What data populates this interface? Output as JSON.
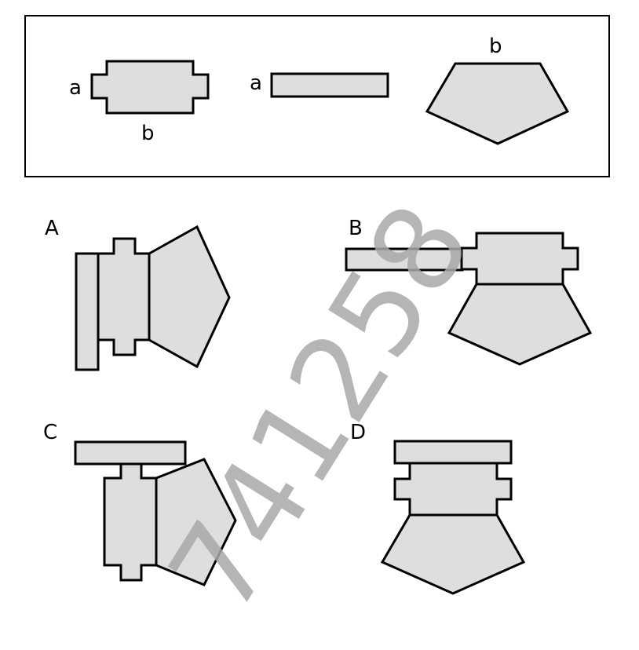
{
  "reference": {
    "labels": {
      "piece1_a": "a",
      "piece1_b": "b",
      "piece2_a": "a",
      "piece3_b": "b"
    }
  },
  "options": [
    {
      "letter": "A"
    },
    {
      "letter": "B"
    },
    {
      "letter": "C"
    },
    {
      "letter": "D"
    }
  ],
  "watermark": "741258",
  "colors": {
    "fill": "#dedede",
    "stroke": "#000000",
    "watermark": "#a9a9a9"
  }
}
